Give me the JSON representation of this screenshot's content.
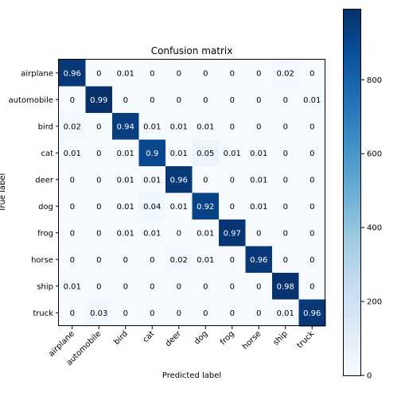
{
  "chart_data": {
    "type": "heatmap",
    "title": "Confusion matrix",
    "xlabel": "Predicted label",
    "ylabel": "True label",
    "classes": [
      "airplane",
      "automobile",
      "bird",
      "cat",
      "deer",
      "dog",
      "frog",
      "horse",
      "ship",
      "truck"
    ],
    "matrix": [
      [
        0.96,
        0.0,
        0.01,
        0.0,
        0.0,
        0.0,
        0.0,
        0.0,
        0.02,
        0.0
      ],
      [
        0.0,
        0.99,
        0.0,
        0.0,
        0.0,
        0.0,
        0.0,
        0.0,
        0.0,
        0.01
      ],
      [
        0.02,
        0.0,
        0.94,
        0.01,
        0.01,
        0.01,
        0.0,
        0.0,
        0.0,
        0.0
      ],
      [
        0.01,
        0.0,
        0.01,
        0.9,
        0.01,
        0.05,
        0.01,
        0.01,
        0.0,
        0.0
      ],
      [
        0.0,
        0.0,
        0.01,
        0.01,
        0.96,
        0.0,
        0.0,
        0.01,
        0.0,
        0.0
      ],
      [
        0.0,
        0.0,
        0.01,
        0.04,
        0.01,
        0.92,
        0.0,
        0.01,
        0.0,
        0.0
      ],
      [
        0.0,
        0.0,
        0.01,
        0.01,
        0.0,
        0.01,
        0.97,
        0.0,
        0.0,
        0.0
      ],
      [
        0.0,
        0.0,
        0.0,
        0.0,
        0.02,
        0.01,
        0.0,
        0.96,
        0.0,
        0.0
      ],
      [
        0.01,
        0.0,
        0.0,
        0.0,
        0.0,
        0.0,
        0.0,
        0.0,
        0.98,
        0.0
      ],
      [
        0.0,
        0.03,
        0.0,
        0.0,
        0.0,
        0.0,
        0.0,
        0.0,
        0.01,
        0.96
      ]
    ],
    "colorbar": {
      "colormap": "Blues",
      "range": [
        0,
        990
      ],
      "ticks": [
        0,
        200,
        400,
        600,
        800
      ]
    },
    "grid": false
  }
}
